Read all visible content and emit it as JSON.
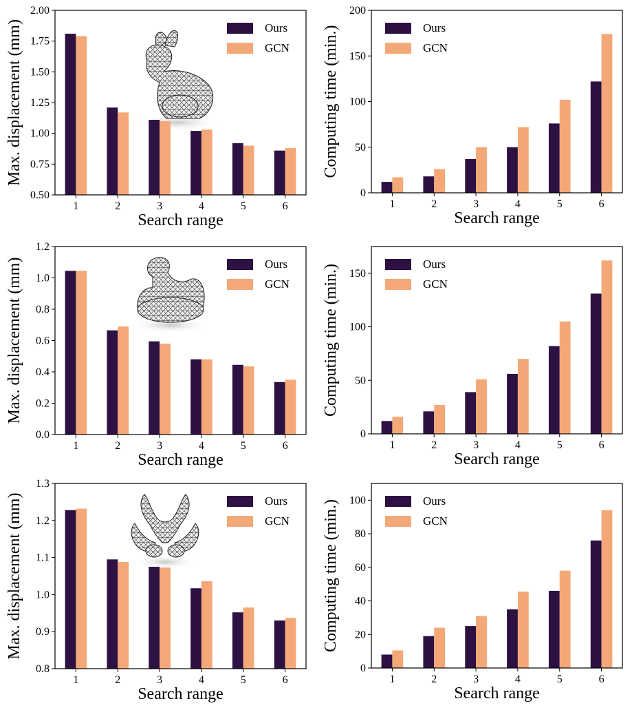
{
  "colors": {
    "ours": "#2d1143",
    "gcn": "#f5a877"
  },
  "chart_data": [
    {
      "type": "bar",
      "title": "",
      "model_icon": "bunny-mesh-icon",
      "categories": [
        "1",
        "2",
        "3",
        "4",
        "5",
        "6"
      ],
      "series": [
        {
          "name": "Ours",
          "values": [
            1.81,
            1.21,
            1.11,
            1.02,
            0.92,
            0.86
          ]
        },
        {
          "name": "GCN",
          "values": [
            1.79,
            1.17,
            1.1,
            1.03,
            0.9,
            0.88
          ]
        }
      ],
      "xlabel": "Search range",
      "ylabel": "Max. displacement (mm)",
      "ylim": [
        0.5,
        2.0
      ],
      "yticks": [
        0.5,
        0.75,
        1.0,
        1.25,
        1.5,
        1.75,
        2.0
      ],
      "ytick_labels": [
        "0.50",
        "0.75",
        "1.00",
        "1.25",
        "1.50",
        "1.75",
        "2.00"
      ],
      "legend": "top-right"
    },
    {
      "type": "bar",
      "title": "",
      "categories": [
        "1",
        "2",
        "3",
        "4",
        "5",
        "6"
      ],
      "series": [
        {
          "name": "Ours",
          "values": [
            12,
            18,
            37,
            50,
            76,
            122
          ]
        },
        {
          "name": "GCN",
          "values": [
            17,
            26,
            50,
            72,
            102,
            174
          ]
        }
      ],
      "xlabel": "Search range",
      "ylabel": "Computing time (min.)",
      "ylim": [
        0,
        200
      ],
      "yticks": [
        0,
        50,
        100,
        150,
        200
      ],
      "ytick_labels": [
        "0",
        "50",
        "100",
        "150",
        "200"
      ],
      "legend": "top-left"
    },
    {
      "type": "bar",
      "title": "",
      "model_icon": "duck-mesh-icon",
      "categories": [
        "1",
        "2",
        "3",
        "4",
        "5",
        "6"
      ],
      "series": [
        {
          "name": "Ours",
          "values": [
            1.045,
            0.665,
            0.595,
            0.48,
            0.445,
            0.335
          ]
        },
        {
          "name": "GCN",
          "values": [
            1.045,
            0.69,
            0.58,
            0.48,
            0.435,
            0.35
          ]
        }
      ],
      "xlabel": "Search range",
      "ylabel": "Max. displacement (mm)",
      "ylim": [
        0.0,
        1.2
      ],
      "yticks": [
        0.0,
        0.2,
        0.4,
        0.6,
        0.8,
        1.0,
        1.2
      ],
      "ytick_labels": [
        "0.0",
        "0.2",
        "0.4",
        "0.6",
        "0.8",
        "1.0",
        "1.2"
      ],
      "legend": "top-right"
    },
    {
      "type": "bar",
      "title": "",
      "categories": [
        "1",
        "2",
        "3",
        "4",
        "5",
        "6"
      ],
      "series": [
        {
          "name": "Ours",
          "values": [
            12,
            21,
            39,
            56,
            82,
            131
          ]
        },
        {
          "name": "GCN",
          "values": [
            16,
            27,
            51,
            70,
            105,
            162
          ]
        }
      ],
      "xlabel": "Search range",
      "ylabel": "Computing time (min.)",
      "ylim": [
        0,
        175
      ],
      "yticks": [
        0,
        50,
        100,
        150
      ],
      "ytick_labels": [
        "0",
        "50",
        "100",
        "150"
      ],
      "legend": "top-left"
    },
    {
      "type": "bar",
      "title": "",
      "model_icon": "pelvis-mesh-icon",
      "categories": [
        "1",
        "2",
        "3",
        "4",
        "5",
        "6"
      ],
      "series": [
        {
          "name": "Ours",
          "values": [
            1.228,
            1.095,
            1.075,
            1.017,
            0.952,
            0.93
          ]
        },
        {
          "name": "GCN",
          "values": [
            1.232,
            1.088,
            1.073,
            1.036,
            0.965,
            0.937
          ]
        }
      ],
      "xlabel": "Search range",
      "ylabel": "Max. displacement (mm)",
      "ylim": [
        0.8,
        1.3
      ],
      "yticks": [
        0.8,
        0.9,
        1.0,
        1.1,
        1.2,
        1.3
      ],
      "ytick_labels": [
        "0.8",
        "0.9",
        "1.0",
        "1.1",
        "1.2",
        "1.3"
      ],
      "legend": "top-right"
    },
    {
      "type": "bar",
      "title": "",
      "categories": [
        "1",
        "2",
        "3",
        "4",
        "5",
        "6"
      ],
      "series": [
        {
          "name": "Ours",
          "values": [
            8,
            19,
            25,
            35,
            46,
            76
          ]
        },
        {
          "name": "GCN",
          "values": [
            10.5,
            24,
            31,
            45.5,
            58,
            94
          ]
        }
      ],
      "xlabel": "Search range",
      "ylabel": "Computing time (min.)",
      "ylim": [
        0,
        110
      ],
      "yticks": [
        0,
        20,
        40,
        60,
        80,
        100
      ],
      "ytick_labels": [
        "0",
        "20",
        "40",
        "60",
        "80",
        "100"
      ],
      "legend": "top-left"
    }
  ]
}
